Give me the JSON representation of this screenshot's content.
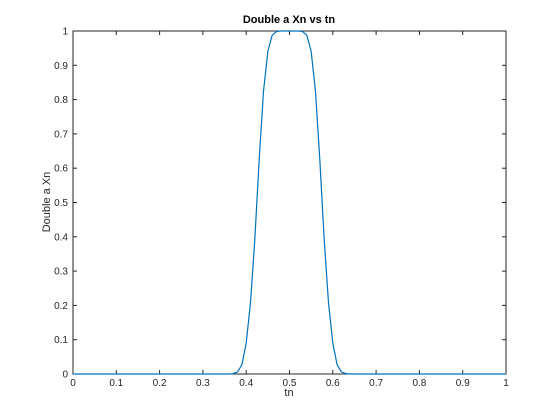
{
  "chart_data": {
    "type": "line",
    "title": "Double a Xn vs tn",
    "xlabel": "tn",
    "ylabel": "Double a Xn",
    "xlim": [
      0,
      1
    ],
    "ylim": [
      0,
      1
    ],
    "grid": false,
    "x_ticks": [
      "0",
      "0.1",
      "0.2",
      "0.3",
      "0.4",
      "0.5",
      "0.6",
      "0.7",
      "0.8",
      "0.9",
      "1"
    ],
    "y_ticks": [
      "0",
      "0.1",
      "0.2",
      "0.3",
      "0.4",
      "0.5",
      "0.6",
      "0.7",
      "0.8",
      "0.9",
      "1"
    ],
    "series": [
      {
        "color": "#0072bd",
        "x": [
          0,
          0.01,
          0.02,
          0.03,
          0.04,
          0.05,
          0.06,
          0.07,
          0.08,
          0.09,
          0.1,
          0.11,
          0.12,
          0.13,
          0.14,
          0.15,
          0.16,
          0.17,
          0.18,
          0.19,
          0.2,
          0.21,
          0.22,
          0.23,
          0.24,
          0.25,
          0.26,
          0.27,
          0.28,
          0.29,
          0.3,
          0.31,
          0.32,
          0.33,
          0.34,
          0.35,
          0.36,
          0.37,
          0.38,
          0.39,
          0.4,
          0.41,
          0.42,
          0.43,
          0.44,
          0.45,
          0.46,
          0.47,
          0.48,
          0.49,
          0.5,
          0.51,
          0.52,
          0.53,
          0.54,
          0.55,
          0.56,
          0.57,
          0.58,
          0.59,
          0.6,
          0.61,
          0.62,
          0.63,
          0.64,
          0.65,
          0.66,
          0.67,
          0.68,
          0.69,
          0.7,
          0.71,
          0.72,
          0.73,
          0.74,
          0.75,
          0.76,
          0.77,
          0.78,
          0.79,
          0.8,
          0.81,
          0.82,
          0.83,
          0.84,
          0.85,
          0.86,
          0.87,
          0.88,
          0.89,
          0.9,
          0.91,
          0.92,
          0.93,
          0.94,
          0.95,
          0.96,
          0.97,
          0.98,
          0.99,
          1
        ],
        "y": [
          0,
          0,
          0,
          0,
          0,
          0,
          0,
          0,
          0,
          0,
          0,
          0,
          0,
          0,
          0,
          0,
          0,
          0,
          0,
          0,
          0,
          0,
          0,
          0,
          0,
          0,
          0,
          0,
          0,
          0,
          0,
          0,
          0,
          0,
          0,
          0,
          0.0001,
          0.0011,
          0.0059,
          0.0269,
          0.0898,
          0.209,
          0.3947,
          0.6251,
          0.8244,
          0.9409,
          0.9877,
          0.9984,
          0.9999,
          1.0,
          1.0,
          1.0,
          0.9999,
          0.9984,
          0.9877,
          0.9409,
          0.8244,
          0.6251,
          0.3947,
          0.209,
          0.0898,
          0.0269,
          0.0059,
          0.0011,
          0.0001,
          0,
          0,
          0,
          0,
          0,
          0,
          0,
          0,
          0,
          0,
          0,
          0,
          0,
          0,
          0,
          0,
          0,
          0,
          0,
          0,
          0,
          0,
          0,
          0,
          0,
          0,
          0,
          0,
          0,
          0,
          0,
          0,
          0,
          0,
          0,
          0
        ]
      }
    ]
  }
}
